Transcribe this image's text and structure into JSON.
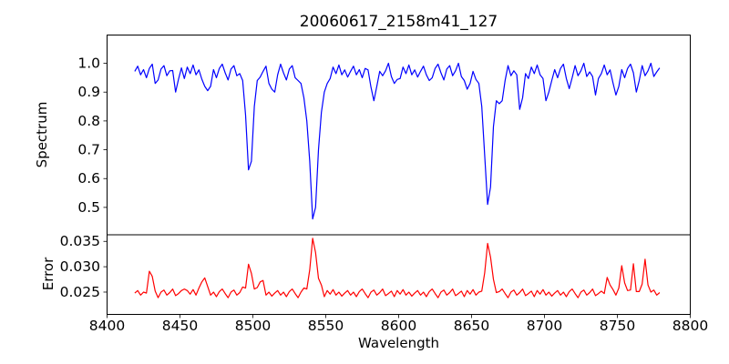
{
  "figure": {
    "background": "#ffffff",
    "axes_color": "#000000"
  },
  "chart_data": {
    "type": "line",
    "title": "20060617_2158m41_127",
    "xlabel": "Wavelength",
    "xlim": [
      8400,
      8800
    ],
    "xticks": [
      8400,
      8450,
      8500,
      8550,
      8600,
      8650,
      8700,
      8750,
      8800
    ],
    "xtick_labels": [
      "8400",
      "8450",
      "8500",
      "8550",
      "8600",
      "8650",
      "8700",
      "8750",
      "8800"
    ],
    "grid": false,
    "legend": false,
    "x_start": 8419,
    "x_step": 2,
    "n_points": 181,
    "panels": [
      {
        "name": "spectrum",
        "ylabel": "Spectrum",
        "color": "#0000ff",
        "ylim": [
          0.405,
          1.098
        ],
        "yticks": [
          0.5,
          0.6,
          0.7,
          0.8,
          0.9,
          1.0
        ],
        "ytick_labels": [
          "0.5",
          "0.6",
          "0.7",
          "0.8",
          "0.9",
          "1.0"
        ],
        "values": [
          0.972,
          0.99,
          0.96,
          0.978,
          0.95,
          0.982,
          0.997,
          0.93,
          0.942,
          0.98,
          0.992,
          0.957,
          0.974,
          0.975,
          0.9,
          0.945,
          0.984,
          0.947,
          0.987,
          0.964,
          0.994,
          0.96,
          0.977,
          0.945,
          0.92,
          0.905,
          0.92,
          0.978,
          0.95,
          0.982,
          0.997,
          0.967,
          0.942,
          0.98,
          0.992,
          0.957,
          0.964,
          0.94,
          0.82,
          0.63,
          0.66,
          0.85,
          0.94,
          0.952,
          0.972,
          0.99,
          0.93,
          0.91,
          0.9,
          0.96,
          0.997,
          0.967,
          0.942,
          0.98,
          0.992,
          0.95,
          0.94,
          0.93,
          0.88,
          0.8,
          0.66,
          0.46,
          0.5,
          0.7,
          0.83,
          0.9,
          0.93,
          0.947,
          0.987,
          0.964,
          0.994,
          0.96,
          0.977,
          0.952,
          0.972,
          0.99,
          0.96,
          0.978,
          0.95,
          0.982,
          0.977,
          0.917,
          0.87,
          0.92,
          0.972,
          0.957,
          0.974,
          1.0,
          0.954,
          0.93,
          0.944,
          0.947,
          0.987,
          0.964,
          0.994,
          0.96,
          0.977,
          0.952,
          0.972,
          0.99,
          0.96,
          0.94,
          0.95,
          0.982,
          0.997,
          0.967,
          0.942,
          0.98,
          0.992,
          0.957,
          0.974,
          1.0,
          0.954,
          0.94,
          0.91,
          0.93,
          0.972,
          0.944,
          0.93,
          0.85,
          0.68,
          0.51,
          0.57,
          0.78,
          0.87,
          0.86,
          0.87,
          0.94,
          0.992,
          0.957,
          0.974,
          0.96,
          0.84,
          0.88,
          0.964,
          0.947,
          0.987,
          0.964,
          0.994,
          0.96,
          0.947,
          0.87,
          0.9,
          0.94,
          0.978,
          0.95,
          0.982,
          0.997,
          0.947,
          0.912,
          0.95,
          0.992,
          0.957,
          0.974,
          1.0,
          0.954,
          0.97,
          0.954,
          0.89,
          0.947,
          0.964,
          0.994,
          0.96,
          0.977,
          0.932,
          0.89,
          0.92,
          0.978,
          0.95,
          0.982,
          0.997,
          0.967,
          0.9,
          0.94,
          0.992,
          0.957,
          0.974,
          1.0,
          0.954,
          0.97,
          0.984
        ]
      },
      {
        "name": "error",
        "ylabel": "Error",
        "color": "#ff0000",
        "ylim": [
          0.0206,
          0.0363
        ],
        "yticks": [
          0.025,
          0.03,
          0.035
        ],
        "ytick_labels": [
          "0.025",
          "0.030",
          "0.035"
        ],
        "values": [
          0.0248,
          0.0253,
          0.0244,
          0.025,
          0.0248,
          0.0291,
          0.0281,
          0.0252,
          0.0239,
          0.025,
          0.0254,
          0.0244,
          0.0249,
          0.0256,
          0.0243,
          0.0247,
          0.0253,
          0.0256,
          0.0253,
          0.0246,
          0.0255,
          0.0244,
          0.0258,
          0.027,
          0.0278,
          0.0261,
          0.0244,
          0.025,
          0.0241,
          0.0251,
          0.0256,
          0.0247,
          0.0239,
          0.025,
          0.0254,
          0.0244,
          0.0249,
          0.026,
          0.0258,
          0.0305,
          0.0287,
          0.0256,
          0.0259,
          0.027,
          0.0273,
          0.0244,
          0.025,
          0.0242,
          0.0248,
          0.0253,
          0.0244,
          0.025,
          0.0241,
          0.0251,
          0.0256,
          0.0247,
          0.0239,
          0.025,
          0.0258,
          0.0256,
          0.0294,
          0.0356,
          0.0328,
          0.0277,
          0.0264,
          0.0241,
          0.0253,
          0.0246,
          0.0255,
          0.0244,
          0.025,
          0.0242,
          0.0248,
          0.0253,
          0.0244,
          0.025,
          0.0241,
          0.0251,
          0.0256,
          0.0247,
          0.0239,
          0.025,
          0.0254,
          0.0244,
          0.0249,
          0.0256,
          0.0243,
          0.0247,
          0.0252,
          0.0241,
          0.0253,
          0.0246,
          0.0255,
          0.0244,
          0.025,
          0.0242,
          0.0248,
          0.0253,
          0.0244,
          0.025,
          0.0241,
          0.0251,
          0.0256,
          0.0247,
          0.0239,
          0.025,
          0.0254,
          0.0244,
          0.0249,
          0.0256,
          0.0243,
          0.0247,
          0.0252,
          0.0241,
          0.0253,
          0.0246,
          0.0255,
          0.0244,
          0.025,
          0.0252,
          0.0288,
          0.0346,
          0.0319,
          0.0275,
          0.0249,
          0.0251,
          0.0256,
          0.0247,
          0.0239,
          0.025,
          0.0254,
          0.0244,
          0.0249,
          0.0256,
          0.0243,
          0.0247,
          0.0252,
          0.0241,
          0.0253,
          0.0246,
          0.0255,
          0.0244,
          0.025,
          0.0242,
          0.0248,
          0.0253,
          0.0244,
          0.025,
          0.0241,
          0.0251,
          0.0256,
          0.0247,
          0.0239,
          0.025,
          0.0254,
          0.0244,
          0.0249,
          0.0256,
          0.0243,
          0.0247,
          0.0252,
          0.0247,
          0.0279,
          0.0264,
          0.0255,
          0.0244,
          0.0258,
          0.0302,
          0.0268,
          0.0253,
          0.0254,
          0.0306,
          0.0251,
          0.0251,
          0.0266,
          0.0315,
          0.0264,
          0.025,
          0.0254,
          0.0244,
          0.0249
        ]
      }
    ]
  }
}
